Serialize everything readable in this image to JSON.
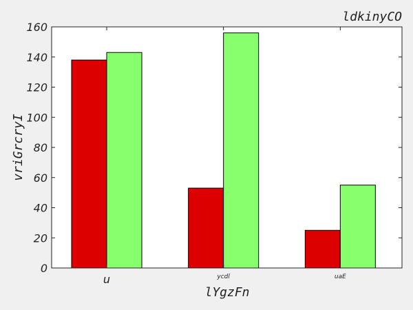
{
  "chart_data": {
    "type": "bar",
    "title": "ldkinyCO",
    "xlabel": "lYgzFn",
    "ylabel": "vriGrcryI",
    "categories": [
      "u",
      "ycdl",
      "uaE"
    ],
    "series": [
      {
        "values": [
          138,
          53,
          25
        ],
        "color": "#dd0000"
      },
      {
        "values": [
          143,
          156,
          55
        ],
        "color": "#88ff6d"
      }
    ],
    "ylim": [
      0,
      160
    ],
    "yticks": [
      0,
      20,
      40,
      60,
      80,
      100,
      120,
      140,
      160
    ],
    "grid": false,
    "legend": "none"
  }
}
